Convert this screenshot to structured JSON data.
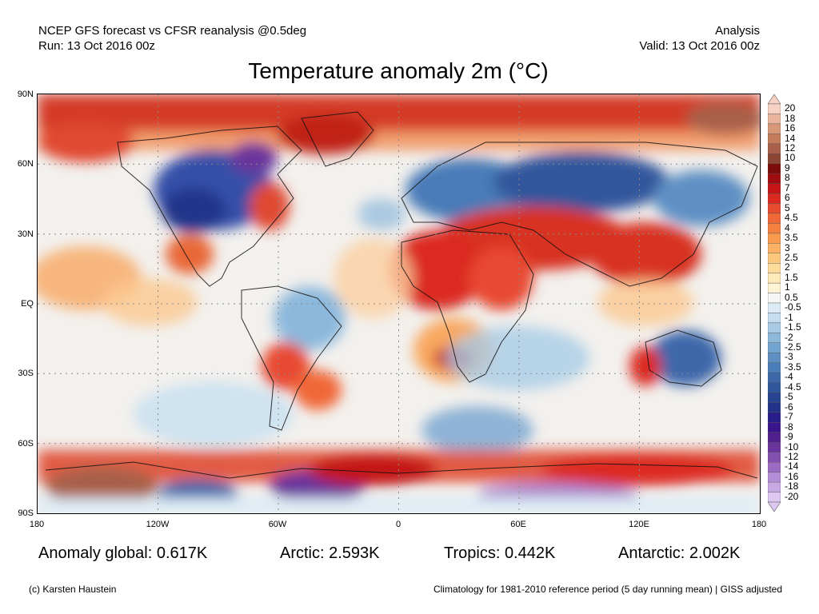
{
  "header": {
    "model_line": "NCEP GFS forecast vs CFSR reanalysis @0.5deg",
    "run_line": "Run: 13 Oct 2016 00z",
    "type_line": "Analysis",
    "valid_line": "Valid: 13 Oct 2016 00z"
  },
  "title": "Temperature anomaly 2m (°C)",
  "map": {
    "lat_labels": [
      "90N",
      "60N",
      "30N",
      "EQ",
      "30S",
      "60S",
      "90S"
    ],
    "lon_labels": [
      "180",
      "120W",
      "60W",
      "0",
      "60E",
      "120E",
      "180"
    ],
    "colorbar_labels": [
      "20",
      "18",
      "16",
      "14",
      "12",
      "10",
      "9",
      "8",
      "7",
      "6",
      "5",
      "4.5",
      "4",
      "3.5",
      "3",
      "2.5",
      "2",
      "1.5",
      "1",
      "0.5",
      "-0.5",
      "-1",
      "-1.5",
      "-2",
      "-2.5",
      "-3",
      "-3.5",
      "-4",
      "-4.5",
      "-5",
      "-6",
      "-7",
      "-8",
      "-9",
      "-10",
      "-12",
      "-14",
      "-16",
      "-18",
      "-20"
    ],
    "colorbar_colors": [
      "#f6d2c4",
      "#e8b49c",
      "#d89878",
      "#c47c5c",
      "#a8604a",
      "#8c4434",
      "#7a0c0c",
      "#a00c10",
      "#c41418",
      "#dc2a22",
      "#e84a30",
      "#f06838",
      "#f48040",
      "#f89a50",
      "#fbb266",
      "#fcc87e",
      "#fddc9c",
      "#fee9b8",
      "#fff4d6",
      "#f6f6f6",
      "#dcecf6",
      "#c4def0",
      "#a8cce6",
      "#8cb8dc",
      "#74a4d0",
      "#5e90c4",
      "#4a7cb8",
      "#3c68aa",
      "#30569c",
      "#284490",
      "#22348a",
      "#281c88",
      "#3a148a",
      "#50208c",
      "#6a349c",
      "#8450b0",
      "#9c6cc4",
      "#b48cd8",
      "#c8a8e4",
      "#dcc8f0"
    ]
  },
  "stats": {
    "global": "Anomaly global: 0.617K",
    "arctic": "Arctic: 2.593K",
    "tropics": "Tropics: 0.442K",
    "antarctic": "Antarctic: 2.002K"
  },
  "footer": {
    "credit": "(c) Karsten Haustein",
    "note": "Climatology for 1981-2010 reference period (5 day running mean) | GISS adjusted"
  }
}
